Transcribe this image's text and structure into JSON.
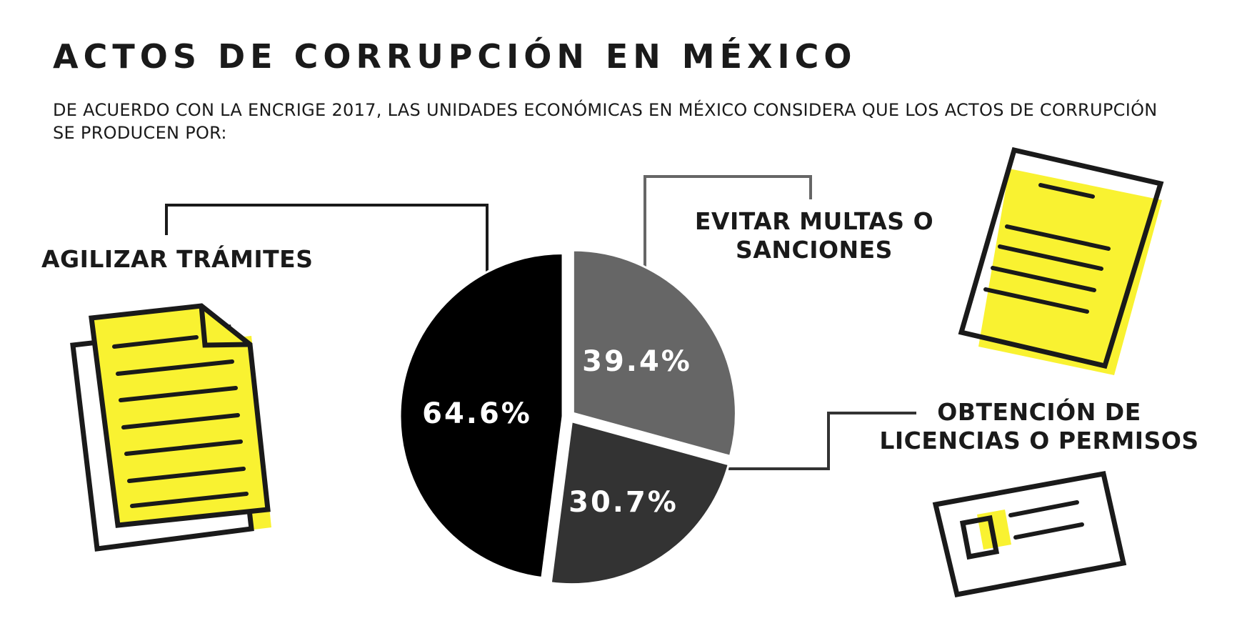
{
  "chart_data": {
    "type": "pie",
    "title": "ACTOS DE CORRUPCIÓN EN MÉXICO",
    "subtitle": "DE ACUERDO CON LA ENCRIGE 2017, LAS UNIDADES ECONÓMICAS EN MÉXICO CONSIDERA QUE LOS ACTOS DE CORRUPCIÓN SE PRODUCEN POR:",
    "unit": "%",
    "slices": [
      {
        "label": "AGILIZAR TRÁMITES",
        "value": 64.6,
        "display": "64.6%",
        "color": "#000000"
      },
      {
        "label": "EVITAR MULTAS O SANCIONES",
        "value": 39.4,
        "display": "39.4%",
        "color": "#666666"
      },
      {
        "label": "OBTENCIÓN DE LICENCIAS O PERMISOS",
        "value": 30.7,
        "display": "30.7%",
        "color": "#333333"
      }
    ],
    "labels_multiline": {
      "evitar": [
        "EVITAR MULTAS O",
        "SANCIONES"
      ],
      "obtencion": [
        "OBTENCIÓN DE",
        "LICENCIAS O PERMISOS"
      ]
    }
  },
  "colors": {
    "accent": "#f9f231",
    "text": "#1a1a1a",
    "leader_dark": "#1a1a1a",
    "leader_gray": "#666666",
    "leader_mid": "#333333"
  },
  "icons": [
    "stacked-documents-icon",
    "document-icon",
    "id-card-icon"
  ]
}
